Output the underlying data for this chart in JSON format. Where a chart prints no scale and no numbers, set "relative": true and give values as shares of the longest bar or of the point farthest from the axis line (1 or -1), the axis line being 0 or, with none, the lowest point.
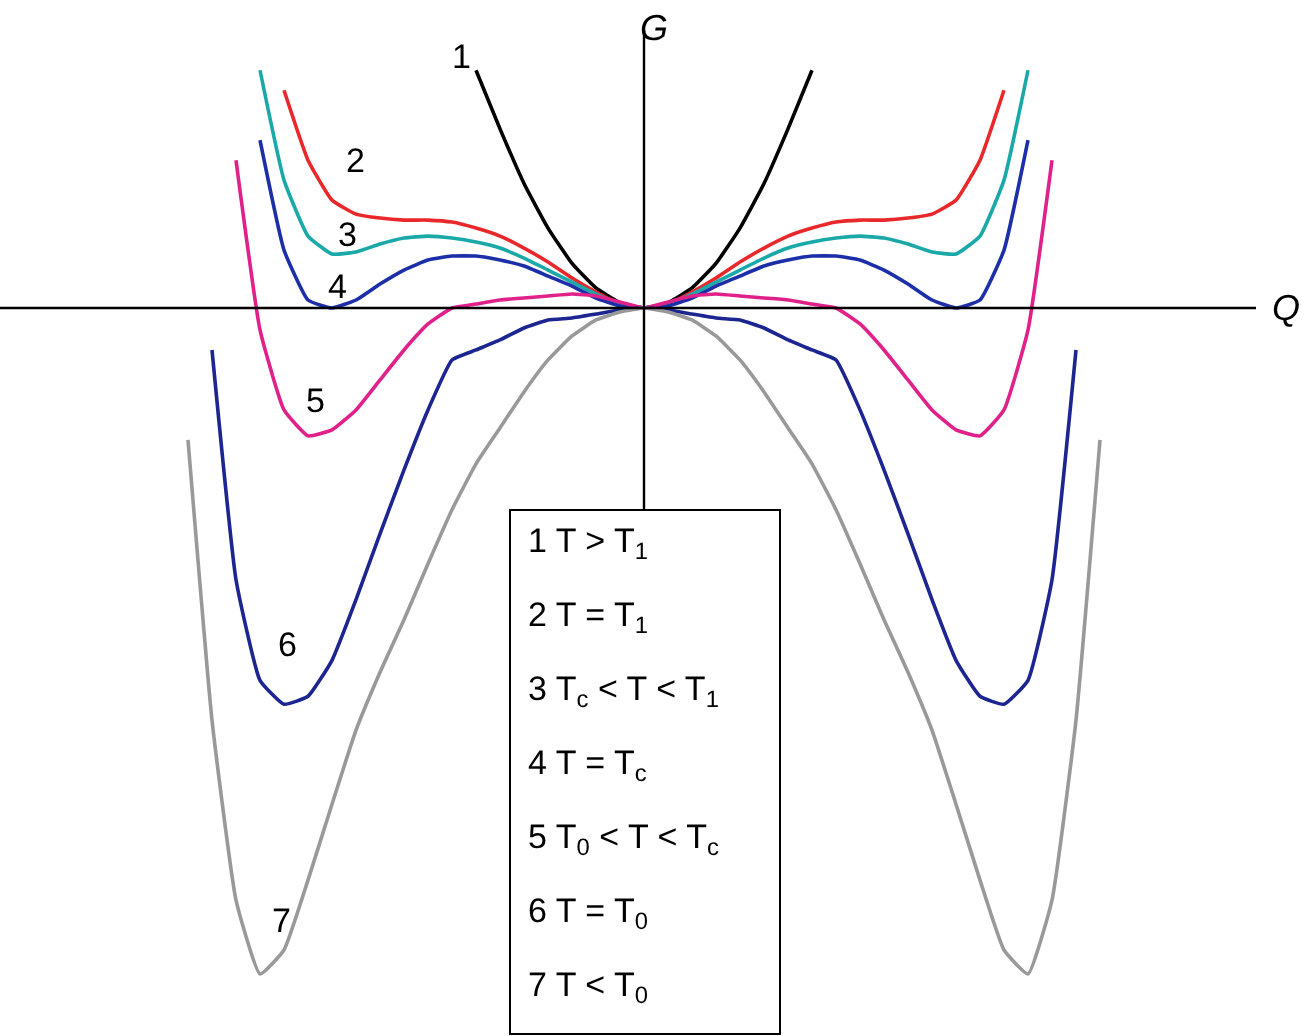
{
  "chart_data": {
    "type": "line",
    "relative": true,
    "xlabel": "Q",
    "ylabel": "G",
    "categories": [
      null,
      null,
      null,
      null,
      null,
      null,
      null,
      null,
      null,
      null,
      null,
      null,
      null,
      null,
      null,
      null,
      null,
      null,
      null,
      null,
      null,
      null,
      null,
      null,
      null,
      null,
      null,
      null,
      null,
      null,
      null,
      null,
      null,
      null,
      null,
      null,
      null,
      null,
      null,
      null,
      null
    ],
    "series": [
      {
        "name": "1",
        "color": "#000000",
        "values": [
          null,
          null,
          null,
          null,
          null,
          null,
          null,
          null,
          null,
          null,
          null,
          null,
          null,
          0.357,
          0.269,
          0.187,
          0.12,
          0.067,
          0.03,
          0.008,
          0,
          0.008,
          0.03,
          0.067,
          0.12,
          0.187,
          0.269,
          0.357,
          null,
          null,
          null,
          null,
          null,
          null,
          null,
          null,
          null,
          null,
          null,
          null,
          null
        ]
      },
      {
        "name": "2",
        "color": "#e8282b",
        "values": [
          null,
          null,
          null,
          null,
          null,
          0.327,
          0.222,
          0.162,
          0.141,
          0.135,
          0.132,
          0.132,
          0.129,
          0.12,
          0.108,
          0.09,
          0.069,
          0.045,
          0.024,
          0.006,
          0,
          0.006,
          0.024,
          0.045,
          0.069,
          0.09,
          0.108,
          0.12,
          0.129,
          0.132,
          0.132,
          0.135,
          0.141,
          0.162,
          0.222,
          0.327,
          null,
          null,
          null,
          null,
          null
        ]
      },
      {
        "name": "3",
        "color": "#1aa8a8",
        "values": [
          null,
          null,
          null,
          null,
          0.357,
          0.192,
          0.108,
          0.081,
          0.084,
          0.096,
          0.105,
          0.108,
          0.105,
          0.099,
          0.09,
          0.075,
          0.057,
          0.039,
          0.021,
          0.006,
          0,
          0.006,
          0.021,
          0.039,
          0.057,
          0.075,
          0.09,
          0.099,
          0.105,
          0.108,
          0.105,
          0.096,
          0.084,
          0.081,
          0.108,
          0.192,
          0.357,
          null,
          null,
          null,
          null
        ]
      },
      {
        "name": "4",
        "color": "#1c2fa8",
        "values": [
          null,
          null,
          null,
          null,
          0.252,
          0.087,
          0.012,
          0,
          0.012,
          0.036,
          0.057,
          0.072,
          0.078,
          0.078,
          0.072,
          0.063,
          0.048,
          0.033,
          0.015,
          0.003,
          0,
          0.003,
          0.015,
          0.033,
          0.048,
          0.063,
          0.072,
          0.078,
          0.078,
          0.072,
          0.057,
          0.036,
          0.012,
          0,
          0.012,
          0.087,
          0.252,
          null,
          null,
          null,
          null
        ]
      },
      {
        "name": "5",
        "color": "#e0218a",
        "values": [
          null,
          null,
          null,
          0.222,
          -0.033,
          -0.153,
          -0.192,
          -0.183,
          -0.153,
          -0.108,
          -0.063,
          -0.024,
          0,
          0.006,
          0.012,
          0.015,
          0.018,
          0.021,
          0.018,
          0.009,
          0,
          0.009,
          0.018,
          0.021,
          0.018,
          0.015,
          0.012,
          0.006,
          0,
          -0.024,
          -0.063,
          -0.108,
          -0.153,
          -0.183,
          -0.192,
          -0.153,
          -0.033,
          0.222,
          null,
          null,
          null
        ]
      },
      {
        "name": "6",
        "color": "#1c2590",
        "values": [
          null,
          null,
          -0.063,
          -0.408,
          -0.559,
          -0.595,
          -0.583,
          -0.529,
          -0.438,
          -0.339,
          -0.243,
          -0.153,
          -0.078,
          -0.063,
          -0.048,
          -0.03,
          -0.018,
          -0.015,
          -0.009,
          -0.003,
          0,
          -0.003,
          -0.009,
          -0.015,
          -0.018,
          -0.03,
          -0.048,
          -0.063,
          -0.078,
          -0.153,
          -0.243,
          -0.339,
          -0.438,
          -0.529,
          -0.583,
          -0.595,
          -0.559,
          -0.408,
          -0.063,
          null,
          null
        ]
      },
      {
        "name": "7",
        "color": "#999999",
        "values": [
          null,
          -0.198,
          -0.619,
          -0.889,
          -1,
          -0.964,
          -0.859,
          -0.745,
          -0.634,
          -0.547,
          -0.468,
          -0.384,
          -0.303,
          -0.234,
          -0.18,
          -0.126,
          -0.078,
          -0.042,
          -0.018,
          -0.006,
          0,
          -0.006,
          -0.018,
          -0.042,
          -0.078,
          -0.126,
          -0.18,
          -0.234,
          -0.303,
          -0.384,
          -0.468,
          -0.547,
          -0.634,
          -0.745,
          -0.859,
          -0.964,
          -1,
          -0.889,
          -0.619,
          -0.198,
          null
        ]
      }
    ],
    "annotations": [
      "1 T > T$_{1}$",
      "2 T = T$_{1}$",
      "3 T$_{c}$ < T < T$_{1}$",
      "4 T = T$_{c}$",
      "5 T$_{0}$ < T < T$_{c}$",
      "6 T = T$_{0}$",
      "7 T < T$_{0}$"
    ],
    "tick_labels": false,
    "legend": false,
    "marker": "none",
    "line_style": "solid"
  }
}
